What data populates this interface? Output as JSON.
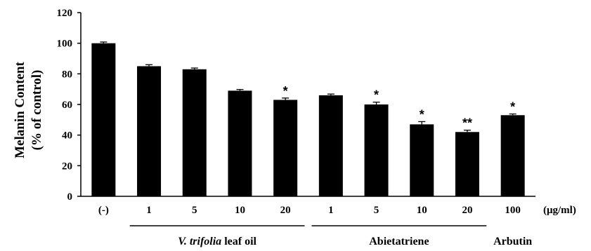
{
  "chart_data": {
    "type": "bar",
    "ylabel_lines": [
      "Melanin Content",
      "(% of control)"
    ],
    "unit_label": "(μg/ml)",
    "ylim": [
      0,
      120
    ],
    "yticks": [
      0,
      20,
      40,
      60,
      80,
      100,
      120
    ],
    "categories": [
      "(-)",
      "1",
      "5",
      "10",
      "20",
      "1",
      "5",
      "10",
      "20",
      "100"
    ],
    "values": [
      100,
      85,
      83,
      69,
      63,
      66,
      60,
      47,
      42,
      53
    ],
    "errors": [
      0.8,
      1.0,
      0.8,
      0.8,
      1.2,
      0.8,
      1.5,
      1.8,
      1.2,
      0.8
    ],
    "significance": [
      "",
      "",
      "",
      "",
      "*",
      "",
      "*",
      "*",
      "**",
      "*"
    ],
    "groups": [
      {
        "label_italic": "V. trifolia",
        "label_rest": " leaf oil",
        "from": 1,
        "to": 4,
        "underline": true
      },
      {
        "label_italic": "",
        "label_rest": "Abietatriene",
        "from": 5,
        "to": 8,
        "underline": true
      },
      {
        "label_italic": "",
        "label_rest": "Arbutin",
        "from": 9,
        "to": 9,
        "underline": false
      }
    ],
    "bar_color": "#000000",
    "grid": false,
    "legend": "none"
  }
}
